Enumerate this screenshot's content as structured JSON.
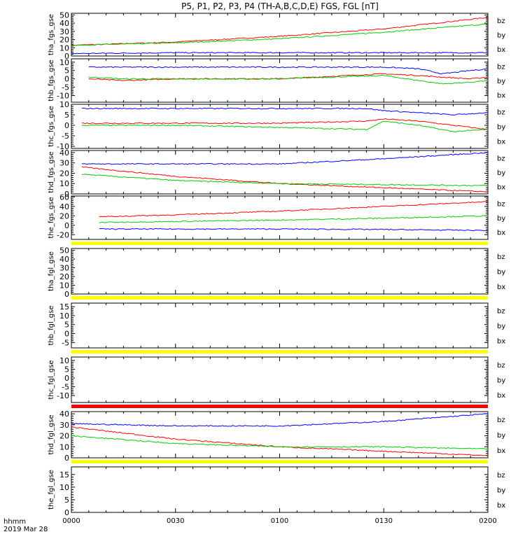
{
  "chart_data": {
    "title": "P5, P1, P2, P3, P4 (TH-A,B,C,D,E) FGS, FGL [nT]",
    "type": "line",
    "x_units_label": "hhmm",
    "date_label": "2019 Mar 28",
    "x_ticks": [
      "0000",
      "0030",
      "0100",
      "0130",
      "0200"
    ],
    "xlim": [
      "00:00",
      "02:00"
    ],
    "legend": [
      {
        "label": "bz",
        "color": "#ff0000"
      },
      {
        "label": "by",
        "color": "#00cc00"
      },
      {
        "label": "bx",
        "color": "#0000ff"
      }
    ],
    "panels": [
      {
        "ylabel": "tha_fgs_gse",
        "ylim": [
          0,
          52
        ],
        "yticks": [
          0,
          10,
          20,
          30,
          40,
          50
        ],
        "series": [
          {
            "component": "bz",
            "color": "#ff0000",
            "x": [
              0,
              30,
              60,
              90,
              120
            ],
            "y": [
              13,
              17,
              24,
              33,
              47
            ]
          },
          {
            "component": "by",
            "color": "#00cc00",
            "x": [
              0,
              30,
              60,
              90,
              120
            ],
            "y": [
              13,
              16,
              21,
              29,
              39
            ]
          },
          {
            "component": "bx",
            "color": "#0000ff",
            "x": [
              0,
              30,
              60,
              90,
              120
            ],
            "y": [
              3,
              4,
              4,
              4,
              4
            ]
          }
        ]
      },
      {
        "ylabel": "thb_fgs_gse",
        "ylim": [
          -14,
          12
        ],
        "yticks": [
          -10,
          -5,
          0,
          5,
          10
        ],
        "series": [
          {
            "component": "bz",
            "color": "#ff0000",
            "x": [
              5,
              15,
              30,
              60,
              90,
              100,
              107,
              115,
              120
            ],
            "y": [
              0,
              -1,
              0,
              0,
              3,
              2,
              1,
              0,
              1
            ]
          },
          {
            "component": "by",
            "color": "#00cc00",
            "x": [
              5,
              15,
              30,
              60,
              90,
              100,
              107,
              115,
              120
            ],
            "y": [
              1,
              0,
              0,
              0,
              2,
              -1,
              -3,
              -2,
              -1
            ]
          },
          {
            "component": "bx",
            "color": "#0000ff",
            "x": [
              5,
              15,
              30,
              60,
              90,
              100,
              107,
              115,
              120
            ],
            "y": [
              7,
              7,
              7,
              7,
              7,
              6,
              3,
              5,
              6
            ]
          }
        ]
      },
      {
        "ylabel": "thc_fgs_gse",
        "ylim": [
          -11,
          10
        ],
        "yticks": [
          -10,
          -5,
          0,
          5,
          10
        ],
        "series": [
          {
            "component": "bz",
            "color": "#ff0000",
            "x": [
              3,
              15,
              30,
              60,
              85,
              90,
              100,
              110,
              120
            ],
            "y": [
              1,
              1,
              1,
              1,
              2,
              3,
              2,
              0,
              -2
            ]
          },
          {
            "component": "by",
            "color": "#00cc00",
            "x": [
              3,
              15,
              30,
              60,
              85,
              90,
              100,
              110,
              120
            ],
            "y": [
              0,
              0,
              0,
              -1,
              -2,
              2,
              0,
              -3,
              -2
            ]
          },
          {
            "component": "bx",
            "color": "#0000ff",
            "x": [
              3,
              15,
              30,
              60,
              85,
              90,
              100,
              110,
              120
            ],
            "y": [
              8,
              8,
              8,
              8,
              8,
              7,
              6,
              5,
              6
            ]
          }
        ]
      },
      {
        "ylabel": "thd_fgs_gse",
        "ylim": [
          0,
          42
        ],
        "yticks": [
          0,
          10,
          20,
          30,
          40
        ],
        "series": [
          {
            "component": "bz",
            "color": "#ff0000",
            "x": [
              3,
              30,
              60,
              90,
              120
            ],
            "y": [
              26,
              17,
              10,
              6,
              2
            ]
          },
          {
            "component": "by",
            "color": "#00cc00",
            "x": [
              3,
              30,
              60,
              90,
              120
            ],
            "y": [
              19,
              13,
              10,
              9,
              8
            ]
          },
          {
            "component": "bx",
            "color": "#0000ff",
            "x": [
              3,
              30,
              60,
              90,
              120
            ],
            "y": [
              29,
              29,
              29,
              34,
              40
            ]
          }
        ]
      },
      {
        "ylabel": "the_fgs_gse",
        "ylim": [
          -30,
          62
        ],
        "yticks": [
          -20,
          0,
          20,
          40,
          60
        ],
        "series": [
          {
            "component": "bz",
            "color": "#ff0000",
            "x": [
              8,
              30,
              60,
              90,
              120
            ],
            "y": [
              18,
              22,
              30,
              40,
              50
            ]
          },
          {
            "component": "by",
            "color": "#00cc00",
            "x": [
              8,
              30,
              60,
              90,
              120
            ],
            "y": [
              6,
              8,
              11,
              15,
              20
            ]
          },
          {
            "component": "bx",
            "color": "#0000ff",
            "x": [
              8,
              30,
              60,
              90,
              120
            ],
            "y": [
              -8,
              -8,
              -8,
              -9,
              -11
            ]
          }
        ]
      },
      {
        "ylabel": "tha_fgl_gse",
        "ylim": [
          0,
          52
        ],
        "yticks": [
          0,
          10,
          20,
          30,
          40,
          50
        ],
        "separator_color": "#ffff00",
        "series": []
      },
      {
        "ylabel": "thb_fgl_gse",
        "ylim": [
          -8,
          17
        ],
        "yticks": [
          -5,
          0,
          5,
          10,
          15
        ],
        "separator_color": "#ffff00",
        "series": []
      },
      {
        "ylabel": "thc_fgl_gse",
        "ylim": [
          -14,
          12
        ],
        "yticks": [
          -10,
          -5,
          0,
          5,
          10
        ],
        "separator_color": "#ffff00",
        "series": []
      },
      {
        "ylabel": "thd_fgl_gse",
        "ylim": [
          0,
          42
        ],
        "yticks": [
          0,
          10,
          20,
          30,
          40
        ],
        "separator_color": "#ff0000",
        "series": [
          {
            "component": "bz",
            "color": "#ff0000",
            "x": [
              0,
              30,
              60,
              90,
              120
            ],
            "y": [
              28,
              17,
              10,
              6,
              2
            ]
          },
          {
            "component": "by",
            "color": "#00cc00",
            "x": [
              0,
              30,
              60,
              90,
              120
            ],
            "y": [
              20,
              13,
              10,
              10,
              8
            ]
          },
          {
            "component": "bx",
            "color": "#0000ff",
            "x": [
              0,
              30,
              60,
              90,
              120
            ],
            "y": [
              31,
              29,
              29,
              33,
              40
            ]
          }
        ]
      },
      {
        "ylabel": "the_fgl_gse",
        "ylim": [
          0,
          18
        ],
        "yticks": [
          0,
          5,
          10,
          15
        ],
        "separator_color": "#ffff00",
        "series": []
      }
    ]
  }
}
